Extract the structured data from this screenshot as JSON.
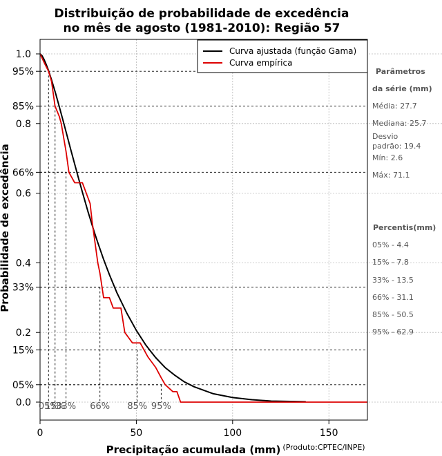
{
  "chart_data": {
    "type": "line",
    "title_line1": "Distribuição de probabilidade de excedência",
    "title_line2": "no mês de agosto (1981-2010): Região 57",
    "xlabel": "Precipitação acumulada (mm)",
    "ylabel": "Probabilidade de excedência",
    "credit": "(Produto:CPTEC/INPE)",
    "xlim": [
      0,
      170
    ],
    "ylim": [
      0,
      1
    ],
    "x_ticks": [
      0,
      50,
      100,
      150
    ],
    "x_tick_labels": [
      "0",
      "50",
      "100",
      "150"
    ],
    "y_ticks_decimal": [
      0.0,
      0.2,
      0.4,
      0.6,
      0.8,
      1.0
    ],
    "y_tick_labels_decimal": [
      "0.0",
      "0.2",
      "0.4",
      "0.6",
      "0.8",
      "1.0"
    ],
    "y_ticks_percent": [
      0.05,
      0.15,
      0.33,
      0.66,
      0.85,
      0.95
    ],
    "y_tick_labels_percent": [
      "05%",
      "15%",
      "33%",
      "66%",
      "85%",
      "95%"
    ],
    "legend": {
      "position": "top-right",
      "entries": [
        {
          "label": "Curva ajustada (função Gama)",
          "color": "#000000"
        },
        {
          "label": "Curva empírica",
          "color": "#dd0000"
        }
      ]
    },
    "series": [
      {
        "name": "Curva ajustada (função Gama)",
        "color": "#000000",
        "x": [
          0,
          1,
          2,
          3,
          4,
          5,
          6,
          8,
          10,
          12,
          14,
          16,
          18,
          20,
          22,
          25,
          28,
          30,
          33,
          36,
          40,
          45,
          50,
          55,
          60,
          65,
          70,
          75,
          80,
          90,
          100,
          110,
          120,
          130,
          138
        ],
        "y": [
          1.0,
          0.995,
          0.985,
          0.972,
          0.958,
          0.942,
          0.925,
          0.888,
          0.848,
          0.807,
          0.766,
          0.724,
          0.683,
          0.642,
          0.603,
          0.545,
          0.491,
          0.458,
          0.41,
          0.366,
          0.313,
          0.256,
          0.206,
          0.163,
          0.128,
          0.099,
          0.077,
          0.058,
          0.044,
          0.024,
          0.013,
          0.007,
          0.003,
          0.002,
          0.001
        ]
      },
      {
        "name": "Curva empírica",
        "color": "#dd0000",
        "x": [
          0,
          2.6,
          4.4,
          6,
          7.8,
          10,
          11,
          13.5,
          15,
          18,
          22,
          24,
          26,
          27,
          30,
          31.1,
          33,
          36,
          38,
          42,
          44,
          48,
          50.5,
          52,
          56,
          60,
          62.9,
          65,
          69,
          71.1,
          73,
          170
        ],
        "y": [
          1.0,
          0.97,
          0.95,
          0.92,
          0.85,
          0.82,
          0.8,
          0.72,
          0.66,
          0.63,
          0.63,
          0.6,
          0.57,
          0.52,
          0.4,
          0.37,
          0.3,
          0.3,
          0.27,
          0.27,
          0.2,
          0.17,
          0.17,
          0.17,
          0.13,
          0.1,
          0.07,
          0.05,
          0.03,
          0.03,
          0.0,
          0.0
        ]
      }
    ],
    "percentile_guides": [
      {
        "label": "05%",
        "prob": 0.95,
        "x": 4.4
      },
      {
        "label": "15%",
        "prob": 0.85,
        "x": 7.8
      },
      {
        "label": "33%",
        "prob": 0.66,
        "x": 13.5
      },
      {
        "label": "66%",
        "prob": 0.33,
        "x": 31.1
      },
      {
        "label": "85%",
        "prob": 0.15,
        "x": 50.5
      },
      {
        "label": "95%",
        "prob": 0.05,
        "x": 62.9
      }
    ],
    "bottom_percent_labels": [
      "05%",
      "15%",
      "33%",
      "66%",
      "85%",
      "95%"
    ]
  },
  "side_panel": {
    "params_heading_1": "Parâmetros",
    "params_heading_2": "da série (mm)",
    "media": "Média: 27.7",
    "mediana": "Mediana: 25.7",
    "desvio_1": "Desvio",
    "desvio_2": "padrão: 19.4",
    "min": "Mín: 2.6",
    "max": "Máx: 71.1",
    "percentis_heading": "Percentis(mm)",
    "percentis": [
      "05% - 4.4",
      "15% - 7.8",
      "33% - 13.5",
      "66% - 31.1",
      "85% - 50.5",
      "95% - 62.9"
    ]
  }
}
